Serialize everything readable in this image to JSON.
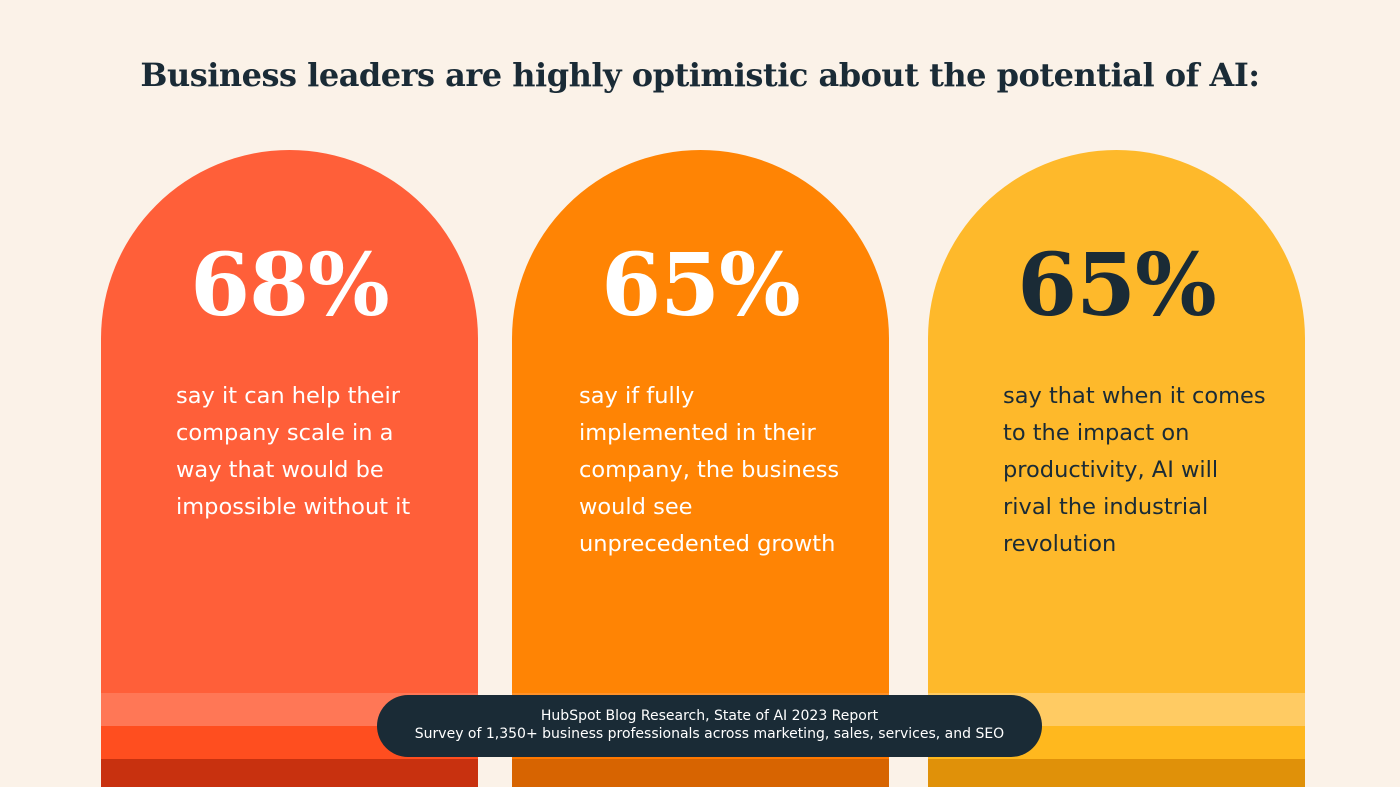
{
  "title": "Business leaders are highly optimistic about the potential of AI:",
  "cards": [
    {
      "stat": "68%",
      "description": "say it can help their company scale in a way that would be impossible without it",
      "color": "#FF5F39",
      "stat_color": "#FFFFFF",
      "text_color": "#FFFFFF",
      "stripe_colors": [
        "#FF7756",
        "#FF4E1F",
        "#C8310F"
      ]
    },
    {
      "stat": "65%",
      "description": "say if fully implemented in their company, the business would see unprecedented growth",
      "color": "#FF8404",
      "stat_color": "#FFFFFF",
      "text_color": "#FFFFFF",
      "stripe_colors": [
        "#FF9128",
        "#FF7800",
        "#D76401"
      ]
    },
    {
      "stat": "65%",
      "description": "say that when it comes to the impact on productivity, AI will rival the industrial revolution",
      "color": "#FEB92B",
      "stat_color": "#1A2B36",
      "text_color": "#1A2B36",
      "stripe_colors": [
        "#FFCB63",
        "#FFB81E",
        "#E09109"
      ]
    }
  ],
  "source": {
    "line1": "HubSpot Blog Research, State of AI 2023 Report",
    "line2": "Survey of 1,350+ business professionals across marketing, sales, services, and SEO"
  },
  "chart_data": {
    "type": "bar",
    "title": "Business leaders are highly optimistic about the potential of AI:",
    "categories": [
      "say it can help their company scale in a way that would be impossible without it",
      "say if fully implemented in their company, the business would see unprecedented growth",
      "say that when it comes to the impact on productivity, AI will rival the industrial revolution"
    ],
    "values": [
      68,
      65,
      65
    ],
    "unit": "%"
  }
}
